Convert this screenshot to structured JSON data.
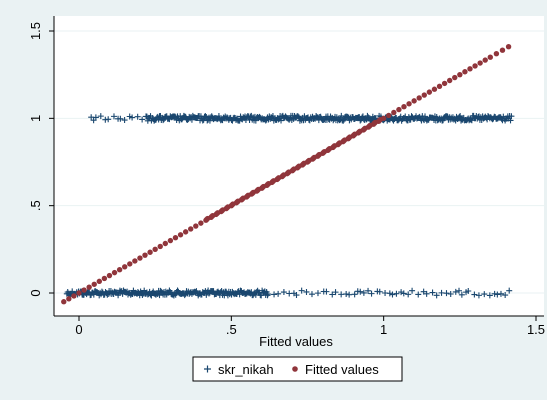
{
  "chart_data": {
    "type": "scatter",
    "xlabel": "Fitted values",
    "ylabel": "",
    "title": "",
    "xlim": [
      -0.06,
      1.5
    ],
    "ylim": [
      -0.06,
      1.5
    ],
    "x_ticks": [
      0,
      0.5,
      1,
      1.5
    ],
    "x_tick_labels": [
      "0",
      ".5",
      "1",
      "1.5"
    ],
    "y_ticks": [
      0,
      0.5,
      1,
      1.5
    ],
    "y_tick_labels": [
      "0",
      ".5",
      "1",
      "1.5"
    ],
    "grid": "horizontal",
    "legend_position": "bottom",
    "series": [
      {
        "name": "skr_nikah",
        "marker": "plus",
        "color": "#1a476f",
        "bands": [
          {
            "y": 0,
            "x_dense": [
              -0.04,
              0.62
            ],
            "x_sparse": [
              0.62,
              1.42
            ]
          },
          {
            "y": 1,
            "x_dense": [
              0.22,
              1.42
            ],
            "x_sparse": [
              0.04,
              0.22
            ]
          }
        ]
      },
      {
        "name": "Fitted values",
        "marker": "dot",
        "color": "#90353b",
        "x": [
          -0.05,
          0.0,
          0.05,
          0.1,
          0.15,
          0.2,
          0.25,
          0.3,
          0.35,
          0.4,
          0.45,
          0.5,
          0.55,
          0.6,
          0.65,
          0.7,
          0.75,
          0.8,
          0.85,
          0.9,
          0.95,
          1.0,
          1.05,
          1.1,
          1.15,
          1.2,
          1.25,
          1.3,
          1.35,
          1.41
        ],
        "y": [
          -0.05,
          0.0,
          0.05,
          0.1,
          0.15,
          0.2,
          0.25,
          0.3,
          0.35,
          0.4,
          0.45,
          0.5,
          0.55,
          0.6,
          0.65,
          0.7,
          0.75,
          0.8,
          0.85,
          0.9,
          0.95,
          1.0,
          1.05,
          1.1,
          1.15,
          1.2,
          1.25,
          1.3,
          1.35,
          1.41
        ]
      }
    ]
  }
}
